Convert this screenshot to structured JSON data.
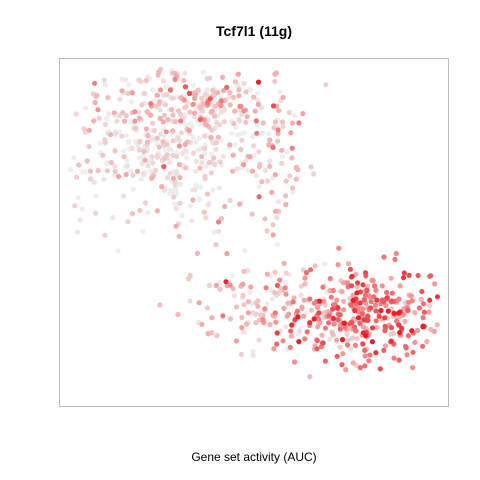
{
  "chart_data": {
    "type": "scatter",
    "title": "Tcf7l1 (11g)",
    "xlabel": "Gene set activity (AUC)",
    "ylabel": "",
    "xlim": [
      0,
      100
    ],
    "ylim": [
      0,
      100
    ],
    "grid": false,
    "axes_ticks": false,
    "color_scale": {
      "low": "#eeeeee",
      "mid": "#f4a3a3",
      "high": "#e8202a",
      "range": [
        0,
        1
      ]
    },
    "clusters": [
      {
        "cx": 27,
        "cy": 77,
        "sx": 14,
        "sy": 13,
        "n": 520,
        "activity_mean": 0.12
      },
      {
        "cx": 38,
        "cy": 88,
        "sx": 8,
        "sy": 4,
        "n": 90,
        "activity_mean": 0.3
      },
      {
        "cx": 56,
        "cy": 72,
        "sx": 4,
        "sy": 14,
        "n": 70,
        "activity_mean": 0.35
      },
      {
        "cx": 57,
        "cy": 29,
        "sx": 12,
        "sy": 7,
        "n": 120,
        "activity_mean": 0.22
      },
      {
        "cx": 80,
        "cy": 25,
        "sx": 13,
        "sy": 7,
        "n": 380,
        "activity_mean": 0.62
      }
    ]
  }
}
